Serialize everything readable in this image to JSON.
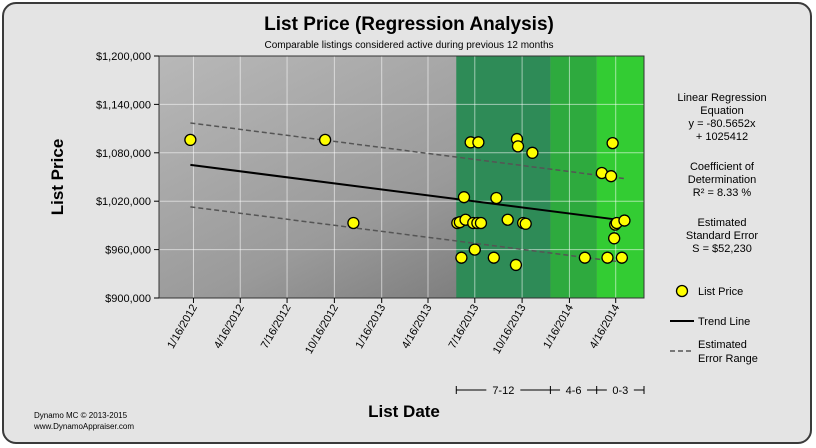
{
  "chart_data": {
    "type": "scatter",
    "title": "List Price (Regression Analysis)",
    "subtitle": "Comparable listings considered active during previous 12 months",
    "xlabel": "List Date",
    "ylabel": "List Price",
    "ylim": [
      900000,
      1200000
    ],
    "xlim": [
      "2011-11-10",
      "2014-06-10"
    ],
    "x_ticks": [
      {
        "date": "2012-01-16",
        "label": "1/16/2012"
      },
      {
        "date": "2012-04-16",
        "label": "4/16/2012"
      },
      {
        "date": "2012-07-16",
        "label": "7/16/2012"
      },
      {
        "date": "2012-10-16",
        "label": "10/16/2012"
      },
      {
        "date": "2013-01-16",
        "label": "1/16/2013"
      },
      {
        "date": "2013-04-16",
        "label": "4/16/2013"
      },
      {
        "date": "2013-07-16",
        "label": "7/16/2013"
      },
      {
        "date": "2013-10-16",
        "label": "10/16/2013"
      },
      {
        "date": "2014-01-16",
        "label": "1/16/2014"
      },
      {
        "date": "2014-04-16",
        "label": "4/16/2014"
      }
    ],
    "y_ticks": [
      {
        "value": 900000,
        "label": "$900,000"
      },
      {
        "value": 960000,
        "label": "$960,000"
      },
      {
        "value": 1020000,
        "label": "$1,020,000"
      },
      {
        "value": 1080000,
        "label": "$1,080,000"
      },
      {
        "value": 1140000,
        "label": "$1,140,000"
      },
      {
        "value": 1200000,
        "label": "$1,200,000"
      }
    ],
    "bands": [
      {
        "label": "7-12",
        "start": "2013-06-10",
        "end": "2013-12-10",
        "color": "#2e8b57"
      },
      {
        "label": "4-6",
        "start": "2013-12-10",
        "end": "2014-03-10",
        "color": "#2eaa3e"
      },
      {
        "label": "0-3",
        "start": "2014-03-10",
        "end": "2014-06-10",
        "color": "#33cc33"
      }
    ],
    "series": [
      {
        "name": "List Price",
        "color": "#ffff00",
        "points": [
          {
            "x": "2012-01-10",
            "y": 1096000
          },
          {
            "x": "2012-09-28",
            "y": 1096000
          },
          {
            "x": "2012-11-22",
            "y": 993000
          },
          {
            "x": "2013-06-12",
            "y": 993000
          },
          {
            "x": "2013-06-17",
            "y": 994000
          },
          {
            "x": "2013-06-20",
            "y": 950000
          },
          {
            "x": "2013-06-25",
            "y": 1025000
          },
          {
            "x": "2013-06-28",
            "y": 997000
          },
          {
            "x": "2013-07-08",
            "y": 1093000
          },
          {
            "x": "2013-07-13",
            "y": 993000
          },
          {
            "x": "2013-07-16",
            "y": 960000
          },
          {
            "x": "2013-07-21",
            "y": 993000
          },
          {
            "x": "2013-07-23",
            "y": 1093000
          },
          {
            "x": "2013-07-28",
            "y": 993000
          },
          {
            "x": "2013-08-22",
            "y": 950000
          },
          {
            "x": "2013-08-27",
            "y": 1024000
          },
          {
            "x": "2013-09-18",
            "y": 997000
          },
          {
            "x": "2013-10-04",
            "y": 941000
          },
          {
            "x": "2013-10-06",
            "y": 1097000
          },
          {
            "x": "2013-10-08",
            "y": 1088000
          },
          {
            "x": "2013-10-18",
            "y": 993000
          },
          {
            "x": "2013-10-23",
            "y": 992000
          },
          {
            "x": "2013-11-05",
            "y": 1080000
          },
          {
            "x": "2014-02-15",
            "y": 950000
          },
          {
            "x": "2014-03-20",
            "y": 1055000
          },
          {
            "x": "2014-03-31",
            "y": 950000
          },
          {
            "x": "2014-04-07",
            "y": 1051000
          },
          {
            "x": "2014-04-10",
            "y": 1092000
          },
          {
            "x": "2014-04-13",
            "y": 974000
          },
          {
            "x": "2014-04-15",
            "y": 991000
          },
          {
            "x": "2014-04-18",
            "y": 993000
          },
          {
            "x": "2014-04-28",
            "y": 950000
          },
          {
            "x": "2014-05-03",
            "y": 996000
          }
        ]
      }
    ],
    "trend_line": {
      "name": "Trend Line",
      "start": {
        "x": "2012-01-10",
        "y": 1065000
      },
      "end": {
        "x": "2014-05-03",
        "y": 996000
      }
    },
    "error_range": {
      "name": "Estimated Error Range",
      "upper": {
        "start": {
          "x": "2012-01-10",
          "y": 1117000
        },
        "end": {
          "x": "2014-05-03",
          "y": 1048000
        }
      },
      "lower": {
        "start": {
          "x": "2012-01-10",
          "y": 1013000
        },
        "end": {
          "x": "2014-05-03",
          "y": 944000
        }
      }
    },
    "grid": true,
    "legend_position": "right"
  },
  "stats": {
    "regression_lines": [
      "Linear Regression",
      "Equation",
      "y = -80.5652x",
      "+ 1025412"
    ],
    "coefficient_lines": [
      "Coefficient of",
      "Determination",
      "R² = 8.33 %"
    ],
    "error_lines": [
      "Estimated",
      "Standard Error",
      "S = $52,230"
    ]
  },
  "legend": {
    "list_price": "List Price",
    "trend_line": "Trend Line",
    "error_range_lines": [
      "Estimated",
      "Error Range"
    ]
  },
  "footer": {
    "line1": "Dynamo MC   © 2013-2015",
    "line2": "www.DynamoAppraiser.com"
  }
}
